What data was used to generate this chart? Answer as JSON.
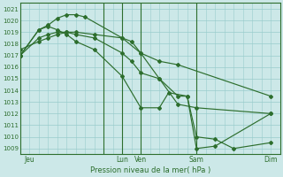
{
  "title": "Pression niveau de la mer( hPa )",
  "bg_color": "#cce8e8",
  "grid_color": "#99cccc",
  "line_color": "#2d6e2d",
  "vline_color": "#2d6e2d",
  "spine_color": "#2d6e2d",
  "ylim": [
    1008.5,
    1021.5
  ],
  "yticks": [
    1009,
    1010,
    1011,
    1012,
    1013,
    1014,
    1015,
    1016,
    1017,
    1018,
    1019,
    1020,
    1021
  ],
  "day_labels": [
    "Jeu",
    "Lun",
    "Ven",
    "Sam",
    "Dim"
  ],
  "day_positions": [
    0.5,
    5.5,
    6.5,
    9.5,
    13.5
  ],
  "vline_positions": [
    4.5,
    5.5,
    6.5,
    9.5
  ],
  "xmin": 0,
  "xmax": 14,
  "series": [
    {
      "x": [
        0,
        1,
        1.5,
        2,
        2.5,
        3,
        3.5,
        5.5,
        6,
        6.5,
        7.5,
        8.5,
        13.5
      ],
      "y": [
        1017.0,
        1019.2,
        1019.6,
        1020.2,
        1020.5,
        1020.5,
        1020.3,
        1018.5,
        1018.2,
        1017.2,
        1016.5,
        1016.2,
        1013.5
      ]
    },
    {
      "x": [
        0,
        1,
        1.5,
        2,
        2.5,
        3,
        4,
        5.5,
        6.5,
        7.5,
        8.5,
        9.5,
        13.5
      ],
      "y": [
        1017.5,
        1018.2,
        1018.5,
        1018.8,
        1019.0,
        1019.0,
        1018.8,
        1018.5,
        1017.2,
        1015.0,
        1012.8,
        1012.5,
        1012.0
      ]
    },
    {
      "x": [
        0,
        1,
        1.5,
        2,
        2.5,
        3,
        4,
        5.5,
        6.5,
        7.5,
        8.0,
        9.0,
        9.5,
        10.5,
        13.5
      ],
      "y": [
        1017.0,
        1019.2,
        1019.5,
        1019.2,
        1018.8,
        1018.2,
        1017.5,
        1015.2,
        1012.5,
        1012.5,
        1013.8,
        1013.5,
        1009.0,
        1009.2,
        1012.0
      ]
    },
    {
      "x": [
        0,
        1,
        1.5,
        2,
        2.5,
        3,
        4,
        5.5,
        6.0,
        6.5,
        7.5,
        8.5,
        9.0,
        9.5,
        10.5,
        11.5,
        13.5
      ],
      "y": [
        1017.0,
        1018.5,
        1018.8,
        1019.0,
        1019.0,
        1018.8,
        1018.5,
        1017.2,
        1016.5,
        1015.5,
        1015.0,
        1013.5,
        1013.5,
        1010.0,
        1009.8,
        1009.0,
        1009.5
      ]
    }
  ]
}
